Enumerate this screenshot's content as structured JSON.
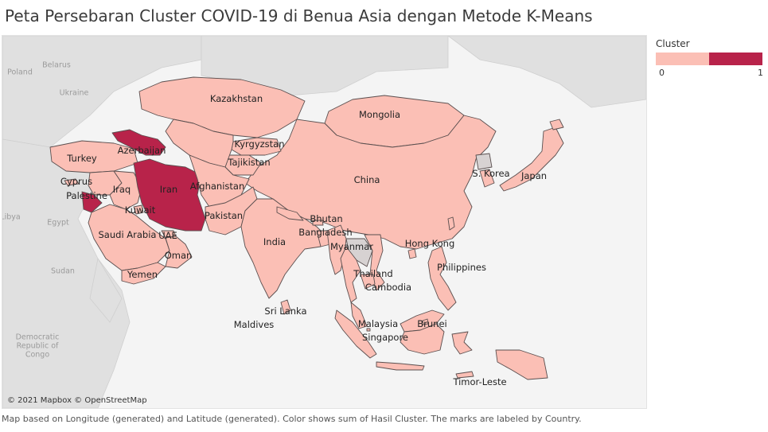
{
  "title": "Peta Persebaran Cluster COVID-19 di Benua Asia dengan Metode K-Means",
  "legend": {
    "title": "Cluster",
    "min_label": "0",
    "max_label": "1",
    "color_low": "#fbbfb5",
    "color_high": "#b8234a"
  },
  "map": {
    "attribution": "© 2021 Mapbox © OpenStreetMap",
    "land_color": "#e0e0e0",
    "water_color": "#f4f4f4",
    "border_color": "#5a4f4f",
    "cluster_0_color": "#fbbfb5",
    "cluster_1_color": "#b8234a",
    "background_labels": [
      "Poland",
      "Belarus",
      "Ukraine",
      "Libya",
      "Egypt",
      "Sudan",
      "Democratic Republic of Congo"
    ],
    "countries": [
      {
        "name": "Kazakhstan",
        "cluster": 0
      },
      {
        "name": "Mongolia",
        "cluster": 0
      },
      {
        "name": "Kyrgyzstan",
        "cluster": 0
      },
      {
        "name": "Azerbaijan",
        "cluster": 1
      },
      {
        "name": "Turkey",
        "cluster": 0
      },
      {
        "name": "Tajikistan",
        "cluster": 0
      },
      {
        "name": "China",
        "cluster": 0
      },
      {
        "name": "S. Korea",
        "cluster": 0
      },
      {
        "name": "Japan",
        "cluster": 0
      },
      {
        "name": "Cyprus",
        "cluster": 0
      },
      {
        "name": "Iraq",
        "cluster": 0
      },
      {
        "name": "Iran",
        "cluster": 1
      },
      {
        "name": "Afghanistan",
        "cluster": 0
      },
      {
        "name": "Palestine",
        "cluster": 1
      },
      {
        "name": "Kuwait",
        "cluster": 0
      },
      {
        "name": "Pakistan",
        "cluster": 0
      },
      {
        "name": "Bhutan",
        "cluster": 0
      },
      {
        "name": "Bangladesh",
        "cluster": 0
      },
      {
        "name": "Saudi Arabia",
        "cluster": 0
      },
      {
        "name": "UAE",
        "cluster": 0
      },
      {
        "name": "India",
        "cluster": 0
      },
      {
        "name": "Myanmar",
        "cluster": 0
      },
      {
        "name": "Hong Kong",
        "cluster": 0
      },
      {
        "name": "Oman",
        "cluster": 0
      },
      {
        "name": "Philippines",
        "cluster": 0
      },
      {
        "name": "Yemen",
        "cluster": 0
      },
      {
        "name": "Thailand",
        "cluster": 0
      },
      {
        "name": "Cambodia",
        "cluster": 0
      },
      {
        "name": "Sri Lanka",
        "cluster": 0
      },
      {
        "name": "Maldives",
        "cluster": 0
      },
      {
        "name": "Malaysia",
        "cluster": 0
      },
      {
        "name": "Brunei",
        "cluster": 0
      },
      {
        "name": "Singapore",
        "cluster": 0
      },
      {
        "name": "Timor-Leste",
        "cluster": 0
      }
    ]
  },
  "footer": "Map based on Longitude (generated) and Latitude (generated).  Color shows sum of Hasil Cluster.  The marks are labeled by Country."
}
